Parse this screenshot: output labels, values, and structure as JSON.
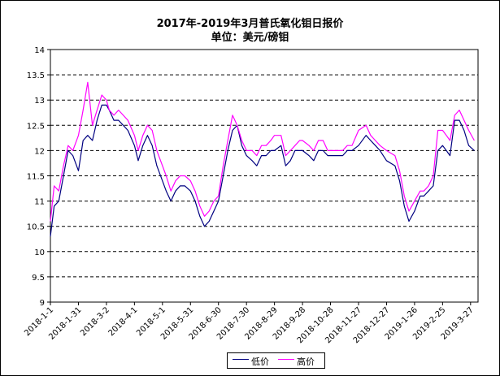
{
  "chart_data": {
    "type": "line",
    "title": "2017年-2019年3月普氏氧化钼日报价",
    "subtitle": "单位：美元/磅钼",
    "ylim": [
      9,
      14
    ],
    "y_ticks": [
      "14",
      "13.5",
      "13",
      "12.5",
      "12",
      "11.5",
      "11",
      "10.5",
      "10",
      "9.5",
      "9"
    ],
    "x_tick_labels": [
      "2018-1-1",
      "2018-1-31",
      "2018-3-2",
      "2018-4-1",
      "2018-5-1",
      "2018-5-31",
      "2018-6-30",
      "2018-7-30",
      "2018-8-29",
      "2018-9-28",
      "2018-10-28",
      "2018-11-27",
      "2018-12-27",
      "2019-1-26",
      "2019-2-25",
      "2019-3-27"
    ],
    "grid": "horizontal-dashed",
    "legend_position": "bottom",
    "colors": {
      "low": "#000080",
      "high": "#ff00ff"
    },
    "x": [
      "2018-01-01",
      "2018-01-05",
      "2018-01-10",
      "2018-01-15",
      "2018-01-20",
      "2018-01-25",
      "2018-01-31",
      "2018-02-05",
      "2018-02-10",
      "2018-02-15",
      "2018-02-20",
      "2018-02-25",
      "2018-03-02",
      "2018-03-05",
      "2018-03-10",
      "2018-03-15",
      "2018-03-20",
      "2018-03-25",
      "2018-04-01",
      "2018-04-05",
      "2018-04-10",
      "2018-04-15",
      "2018-04-20",
      "2018-04-25",
      "2018-05-01",
      "2018-05-05",
      "2018-05-10",
      "2018-05-15",
      "2018-05-20",
      "2018-05-25",
      "2018-05-31",
      "2018-06-05",
      "2018-06-10",
      "2018-06-15",
      "2018-06-20",
      "2018-06-25",
      "2018-06-30",
      "2018-07-05",
      "2018-07-10",
      "2018-07-15",
      "2018-07-20",
      "2018-07-25",
      "2018-07-30",
      "2018-08-05",
      "2018-08-10",
      "2018-08-15",
      "2018-08-20",
      "2018-08-25",
      "2018-08-29",
      "2018-09-05",
      "2018-09-10",
      "2018-09-15",
      "2018-09-20",
      "2018-09-25",
      "2018-09-28",
      "2018-10-05",
      "2018-10-10",
      "2018-10-15",
      "2018-10-20",
      "2018-10-25",
      "2018-10-28",
      "2018-11-05",
      "2018-11-10",
      "2018-11-15",
      "2018-11-20",
      "2018-11-27",
      "2018-12-05",
      "2018-12-10",
      "2018-12-15",
      "2018-12-20",
      "2018-12-27",
      "2019-01-05",
      "2019-01-10",
      "2019-01-15",
      "2019-01-20",
      "2019-01-26",
      "2019-02-01",
      "2019-02-05",
      "2019-02-10",
      "2019-02-15",
      "2019-02-20",
      "2019-02-25",
      "2019-03-01",
      "2019-03-05",
      "2019-03-10",
      "2019-03-15",
      "2019-03-20",
      "2019-03-25",
      "2019-03-31"
    ],
    "series": [
      {
        "name": "低价",
        "values": [
          10.3,
          10.9,
          11.0,
          11.5,
          12.0,
          11.9,
          11.6,
          12.2,
          12.3,
          12.2,
          12.6,
          12.9,
          12.9,
          12.8,
          12.6,
          12.6,
          12.5,
          12.4,
          12.1,
          11.8,
          12.1,
          12.3,
          12.1,
          11.7,
          11.4,
          11.2,
          11.0,
          11.2,
          11.3,
          11.3,
          11.2,
          11.0,
          10.7,
          10.5,
          10.6,
          10.8,
          11.0,
          11.5,
          12.0,
          12.4,
          12.5,
          12.1,
          11.9,
          11.8,
          11.7,
          11.9,
          11.9,
          12.0,
          12.0,
          12.1,
          11.7,
          11.8,
          12.0,
          12.0,
          12.0,
          11.9,
          11.8,
          12.0,
          12.0,
          11.9,
          11.9,
          11.9,
          11.9,
          12.0,
          12.0,
          12.1,
          12.3,
          12.2,
          12.1,
          12.0,
          11.8,
          11.7,
          11.4,
          10.9,
          10.6,
          10.8,
          11.1,
          11.1,
          11.2,
          11.3,
          12.0,
          12.1,
          12.0,
          11.9,
          12.6,
          12.6,
          12.4,
          12.1,
          12.0
        ]
      },
      {
        "name": "高价",
        "values": [
          10.6,
          11.3,
          11.2,
          11.7,
          12.1,
          12.0,
          12.3,
          12.8,
          13.35,
          12.5,
          12.8,
          13.1,
          13.0,
          12.8,
          12.7,
          12.8,
          12.7,
          12.6,
          12.3,
          12.0,
          12.3,
          12.5,
          12.4,
          12.0,
          11.7,
          11.5,
          11.2,
          11.4,
          11.5,
          11.5,
          11.4,
          11.2,
          10.9,
          10.7,
          10.8,
          11.0,
          11.1,
          11.7,
          12.2,
          12.7,
          12.5,
          12.2,
          12.0,
          12.0,
          11.9,
          12.1,
          12.1,
          12.2,
          12.3,
          12.3,
          11.9,
          12.0,
          12.1,
          12.2,
          12.2,
          12.1,
          12.0,
          12.2,
          12.2,
          12.0,
          12.0,
          12.0,
          12.0,
          12.1,
          12.1,
          12.4,
          12.5,
          12.3,
          12.2,
          12.1,
          12.0,
          11.9,
          11.6,
          11.1,
          10.8,
          11.0,
          11.2,
          11.2,
          11.3,
          11.5,
          12.4,
          12.4,
          12.3,
          12.2,
          12.7,
          12.8,
          12.6,
          12.4,
          12.2
        ]
      }
    ]
  }
}
